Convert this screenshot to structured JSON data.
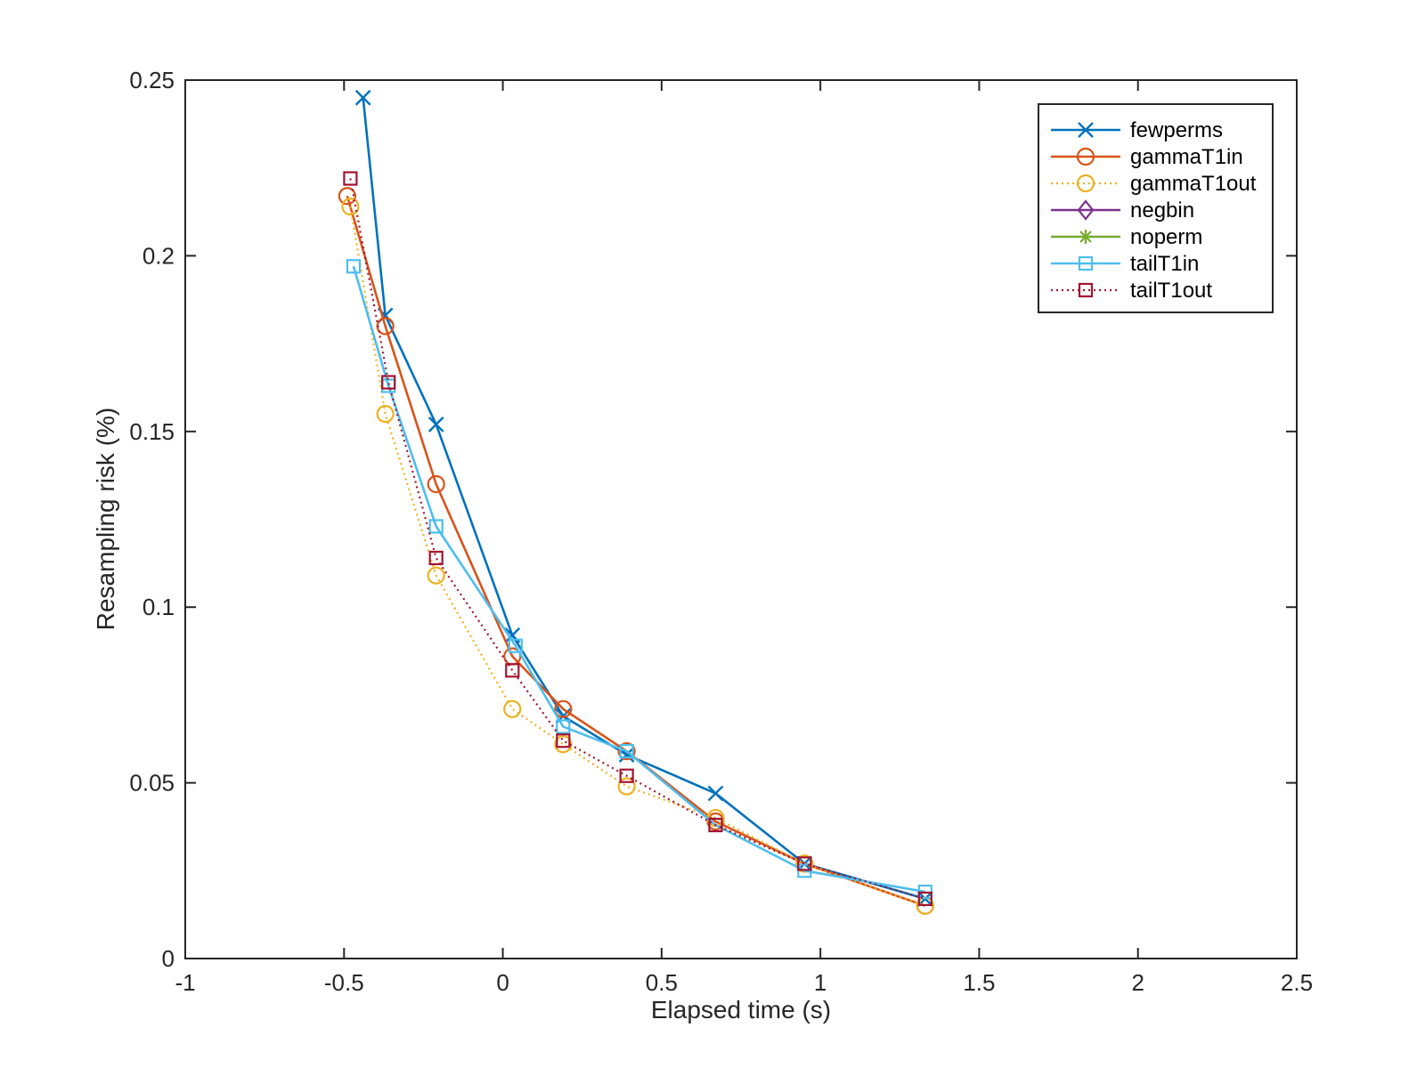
{
  "chart_data": {
    "type": "line",
    "title": "",
    "xlabel": "Elapsed time (s)",
    "ylabel": "Resampling risk (%)",
    "xlim": [
      -1,
      2.5
    ],
    "ylim": [
      0,
      0.25
    ],
    "xticks": [
      -1,
      -0.5,
      0,
      0.5,
      1,
      1.5,
      2,
      2.5
    ],
    "xtick_labels": [
      "-1",
      "-0.5",
      "0",
      "0.5",
      "1",
      "1.5",
      "2",
      "2.5"
    ],
    "yticks": [
      0,
      0.05,
      0.1,
      0.15,
      0.2,
      0.25
    ],
    "ytick_labels": [
      "0",
      "0.05",
      "0.1",
      "0.15",
      "0.2",
      "0.25"
    ],
    "grid": false,
    "legend_position": "top-right",
    "series": [
      {
        "name": "fewperms",
        "color": "#0072BD",
        "marker": "x",
        "line": "solid",
        "x": [
          -0.44,
          -0.37,
          -0.21,
          0.03,
          0.19,
          0.39,
          0.67,
          0.95,
          1.33
        ],
        "y": [
          0.245,
          0.183,
          0.152,
          0.092,
          0.069,
          0.058,
          0.047,
          0.027,
          0.017
        ]
      },
      {
        "name": "gammaT1in",
        "color": "#D95319",
        "marker": "o",
        "line": "solid",
        "x": [
          -0.49,
          -0.37,
          -0.21,
          0.03,
          0.19,
          0.39,
          0.67,
          0.95,
          1.33
        ],
        "y": [
          0.217,
          0.18,
          0.135,
          0.086,
          0.071,
          0.059,
          0.039,
          0.027,
          0.015
        ]
      },
      {
        "name": "gammaT1out",
        "color": "#EDB120",
        "marker": "o",
        "line": "dotted",
        "x": [
          -0.48,
          -0.37,
          -0.21,
          0.03,
          0.19,
          0.39,
          0.67,
          0.95,
          1.33
        ],
        "y": [
          0.214,
          0.155,
          0.109,
          0.071,
          0.061,
          0.049,
          0.04,
          0.027,
          0.015
        ]
      },
      {
        "name": "negbin",
        "color": "#7E2F8E",
        "marker": "diamond",
        "line": "solid",
        "x": [],
        "y": []
      },
      {
        "name": "noperm",
        "color": "#77AC30",
        "marker": "asterisk",
        "line": "solid",
        "x": [],
        "y": []
      },
      {
        "name": "tailT1in",
        "color": "#4DBEEE",
        "marker": "square",
        "line": "solid",
        "x": [
          -0.47,
          -0.36,
          -0.21,
          0.04,
          0.19,
          0.39,
          0.67,
          0.95,
          1.33
        ],
        "y": [
          0.197,
          0.163,
          0.123,
          0.089,
          0.066,
          0.059,
          0.038,
          0.025,
          0.019
        ]
      },
      {
        "name": "tailT1out",
        "color": "#A2142F",
        "marker": "square",
        "line": "dotted",
        "x": [
          -0.48,
          -0.36,
          -0.21,
          0.03,
          0.19,
          0.39,
          0.67,
          0.95,
          1.33
        ],
        "y": [
          0.222,
          0.164,
          0.114,
          0.082,
          0.062,
          0.052,
          0.038,
          0.027,
          0.017
        ]
      }
    ]
  }
}
